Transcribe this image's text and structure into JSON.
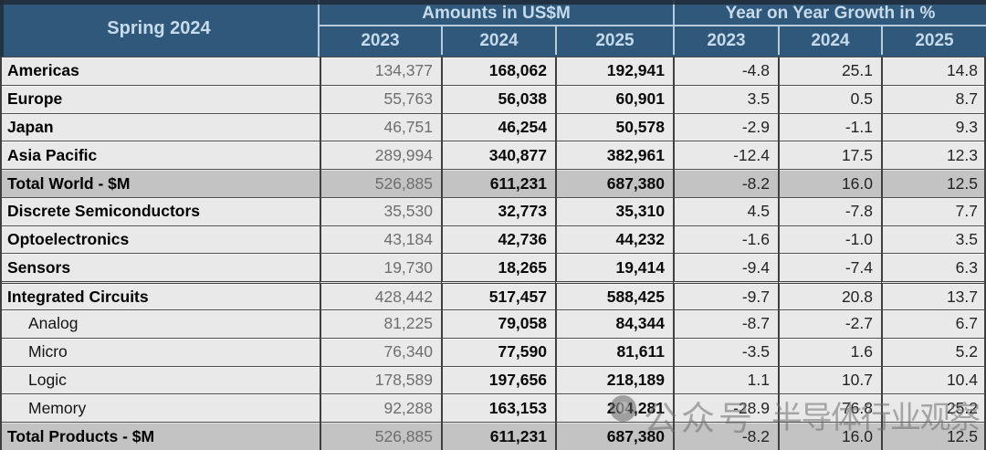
{
  "header": {
    "title": "Spring 2024",
    "amounts_group": "Amounts in US$M",
    "growth_group": "Year on Year Growth in %",
    "amount_years": [
      "2023",
      "2024",
      "2025"
    ],
    "growth_years": [
      "2023",
      "2024",
      "2025"
    ]
  },
  "watermark": {
    "source_label": "公众号",
    "account_name": "半导体行业观察",
    "logo": "gray-circle-logo"
  },
  "colors": {
    "header_bg": "#30587A",
    "header_text": "#C6DAEB",
    "row_bg": "#E9E9E9",
    "total_row_bg": "#C3C3C3",
    "border_dark": "#3F3F3F"
  },
  "chart_data": {
    "type": "table",
    "title": "Spring 2024",
    "column_groups": [
      "Amounts in US$M",
      "Year on Year Growth in %"
    ],
    "columns": [
      "",
      "Amounts 2023",
      "Amounts 2024",
      "Amounts 2025",
      "Growth % 2023",
      "Growth % 2024",
      "Growth % 2025"
    ],
    "rows": [
      {
        "label": "Americas",
        "sub": false,
        "total": false,
        "thick": false,
        "amounts": [
          "134,377",
          "168,062",
          "192,941"
        ],
        "growth": [
          "-4.8",
          "25.1",
          "14.8"
        ]
      },
      {
        "label": "Europe",
        "sub": false,
        "total": false,
        "thick": false,
        "amounts": [
          "55,763",
          "56,038",
          "60,901"
        ],
        "growth": [
          "3.5",
          "0.5",
          "8.7"
        ]
      },
      {
        "label": "Japan",
        "sub": false,
        "total": false,
        "thick": false,
        "amounts": [
          "46,751",
          "46,254",
          "50,578"
        ],
        "growth": [
          "-2.9",
          "-1.1",
          "9.3"
        ]
      },
      {
        "label": "Asia Pacific",
        "sub": false,
        "total": false,
        "thick": false,
        "amounts": [
          "289,994",
          "340,877",
          "382,961"
        ],
        "growth": [
          "-12.4",
          "17.5",
          "12.3"
        ]
      },
      {
        "label": "Total World - $M",
        "sub": false,
        "total": true,
        "thick": false,
        "amounts": [
          "526,885",
          "611,231",
          "687,380"
        ],
        "growth": [
          "-8.2",
          "16.0",
          "12.5"
        ]
      },
      {
        "label": "Discrete Semiconductors",
        "sub": false,
        "total": false,
        "thick": false,
        "amounts": [
          "35,530",
          "32,773",
          "35,310"
        ],
        "growth": [
          "4.5",
          "-7.8",
          "7.7"
        ]
      },
      {
        "label": "Optoelectronics",
        "sub": false,
        "total": false,
        "thick": false,
        "amounts": [
          "43,184",
          "42,736",
          "44,232"
        ],
        "growth": [
          "-1.6",
          "-1.0",
          "3.5"
        ]
      },
      {
        "label": "Sensors",
        "sub": false,
        "total": false,
        "thick": false,
        "amounts": [
          "19,730",
          "18,265",
          "19,414"
        ],
        "growth": [
          "-9.4",
          "-7.4",
          "6.3"
        ]
      },
      {
        "label": "Integrated Circuits",
        "sub": false,
        "total": false,
        "thick": true,
        "amounts": [
          "428,442",
          "517,457",
          "588,425"
        ],
        "growth": [
          "-9.7",
          "20.8",
          "13.7"
        ]
      },
      {
        "label": "Analog",
        "sub": true,
        "total": false,
        "thick": false,
        "amounts": [
          "81,225",
          "79,058",
          "84,344"
        ],
        "growth": [
          "-8.7",
          "-2.7",
          "6.7"
        ]
      },
      {
        "label": "Micro",
        "sub": true,
        "total": false,
        "thick": false,
        "amounts": [
          "76,340",
          "77,590",
          "81,611"
        ],
        "growth": [
          "-3.5",
          "1.6",
          "5.2"
        ]
      },
      {
        "label": "Logic",
        "sub": true,
        "total": false,
        "thick": false,
        "amounts": [
          "178,589",
          "197,656",
          "218,189"
        ],
        "growth": [
          "1.1",
          "10.7",
          "10.4"
        ]
      },
      {
        "label": "Memory",
        "sub": true,
        "total": false,
        "thick": false,
        "amounts": [
          "92,288",
          "163,153",
          "204,281"
        ],
        "growth": [
          "-28.9",
          "76.8",
          "25.2"
        ]
      },
      {
        "label": "Total Products - $M",
        "sub": false,
        "total": true,
        "thick": false,
        "amounts": [
          "526,885",
          "611,231",
          "687,380"
        ],
        "growth": [
          "-8.2",
          "16.0",
          "12.5"
        ]
      }
    ]
  }
}
